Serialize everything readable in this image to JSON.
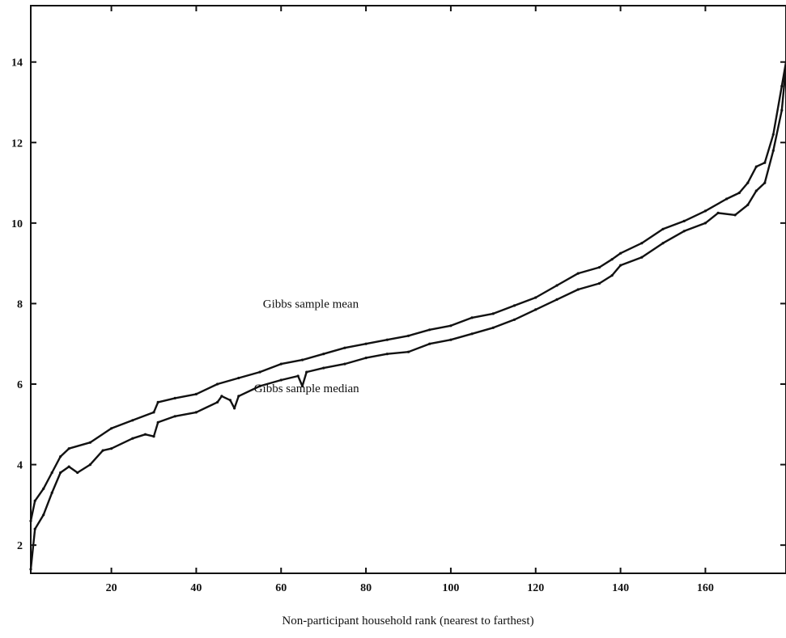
{
  "chart_data": {
    "type": "line",
    "title": "",
    "xlabel": "Non-participant household rank (nearest to farthest)",
    "ylabel": "",
    "xlim": [
      1,
      179
    ],
    "ylim": [
      1.3,
      15.4
    ],
    "xticks": [
      20,
      40,
      60,
      80,
      100,
      120,
      140,
      160
    ],
    "yticks": [
      2,
      4,
      6,
      8,
      10,
      12,
      14
    ],
    "grid": false,
    "legend": "none",
    "annotations": [
      {
        "text": "Gibbs sample mean",
        "x": 67,
        "y": 7.9,
        "series": "Gibbs sample mean"
      },
      {
        "text": "Gibbs sample median",
        "x": 66,
        "y": 5.8,
        "series": "Gibbs sample median"
      }
    ],
    "series": [
      {
        "name": "Gibbs sample mean",
        "color": "#111111",
        "points": [
          [
            1,
            2.6
          ],
          [
            2,
            3.1
          ],
          [
            4,
            3.4
          ],
          [
            6,
            3.8
          ],
          [
            8,
            4.2
          ],
          [
            10,
            4.4
          ],
          [
            15,
            4.55
          ],
          [
            20,
            4.9
          ],
          [
            25,
            5.1
          ],
          [
            30,
            5.3
          ],
          [
            31,
            5.55
          ],
          [
            35,
            5.65
          ],
          [
            40,
            5.75
          ],
          [
            45,
            6.0
          ],
          [
            50,
            6.15
          ],
          [
            55,
            6.3
          ],
          [
            60,
            6.5
          ],
          [
            65,
            6.6
          ],
          [
            70,
            6.75
          ],
          [
            75,
            6.9
          ],
          [
            80,
            7.0
          ],
          [
            85,
            7.1
          ],
          [
            90,
            7.2
          ],
          [
            95,
            7.35
          ],
          [
            100,
            7.45
          ],
          [
            105,
            7.65
          ],
          [
            110,
            7.75
          ],
          [
            115,
            7.95
          ],
          [
            120,
            8.15
          ],
          [
            125,
            8.45
          ],
          [
            130,
            8.75
          ],
          [
            135,
            8.9
          ],
          [
            138,
            9.1
          ],
          [
            140,
            9.25
          ],
          [
            145,
            9.5
          ],
          [
            150,
            9.85
          ],
          [
            155,
            10.05
          ],
          [
            160,
            10.3
          ],
          [
            165,
            10.6
          ],
          [
            168,
            10.75
          ],
          [
            170,
            11.0
          ],
          [
            172,
            11.4
          ],
          [
            174,
            11.5
          ],
          [
            176,
            12.2
          ],
          [
            178,
            13.4
          ],
          [
            179,
            14.0
          ]
        ]
      },
      {
        "name": "Gibbs sample median",
        "color": "#111111",
        "points": [
          [
            1,
            1.4
          ],
          [
            2,
            2.4
          ],
          [
            4,
            2.75
          ],
          [
            6,
            3.3
          ],
          [
            8,
            3.8
          ],
          [
            10,
            3.95
          ],
          [
            12,
            3.8
          ],
          [
            15,
            4.0
          ],
          [
            18,
            4.35
          ],
          [
            20,
            4.4
          ],
          [
            25,
            4.65
          ],
          [
            28,
            4.75
          ],
          [
            30,
            4.7
          ],
          [
            31,
            5.05
          ],
          [
            35,
            5.2
          ],
          [
            40,
            5.3
          ],
          [
            45,
            5.55
          ],
          [
            46,
            5.7
          ],
          [
            48,
            5.6
          ],
          [
            49,
            5.4
          ],
          [
            50,
            5.7
          ],
          [
            55,
            5.95
          ],
          [
            60,
            6.1
          ],
          [
            64,
            6.2
          ],
          [
            65,
            5.95
          ],
          [
            66,
            6.3
          ],
          [
            70,
            6.4
          ],
          [
            75,
            6.5
          ],
          [
            80,
            6.65
          ],
          [
            85,
            6.75
          ],
          [
            90,
            6.8
          ],
          [
            95,
            7.0
          ],
          [
            100,
            7.1
          ],
          [
            105,
            7.25
          ],
          [
            110,
            7.4
          ],
          [
            115,
            7.6
          ],
          [
            120,
            7.85
          ],
          [
            125,
            8.1
          ],
          [
            130,
            8.35
          ],
          [
            135,
            8.5
          ],
          [
            138,
            8.7
          ],
          [
            140,
            8.95
          ],
          [
            145,
            9.15
          ],
          [
            150,
            9.5
          ],
          [
            155,
            9.8
          ],
          [
            160,
            10.0
          ],
          [
            163,
            10.25
          ],
          [
            167,
            10.2
          ],
          [
            170,
            10.45
          ],
          [
            172,
            10.8
          ],
          [
            174,
            11.0
          ],
          [
            176,
            11.8
          ],
          [
            178,
            12.8
          ],
          [
            179,
            13.9
          ]
        ]
      }
    ]
  }
}
